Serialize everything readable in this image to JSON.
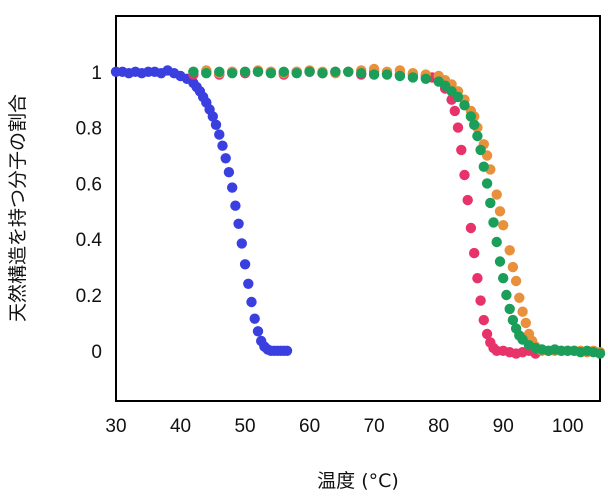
{
  "chart_data": {
    "type": "scatter",
    "title": "",
    "xlabel": "温度 (°C)",
    "ylabel": "天然構造を持つ分子の割合",
    "xlim": [
      30,
      105
    ],
    "ylim": [
      -0.18,
      1.2
    ],
    "xticks": [
      30,
      40,
      50,
      60,
      70,
      80,
      90,
      100
    ],
    "yticks": [
      0,
      0.2,
      0.4,
      0.6,
      0.8,
      1
    ],
    "ytick_labels": [
      "0",
      "0.2",
      "0.4",
      "0.6",
      "0.8",
      "1"
    ],
    "grid": false,
    "legend": "none",
    "series": [
      {
        "color": "#3a3fe0",
        "points": [
          [
            30,
            1.0
          ],
          [
            31,
            1.0
          ],
          [
            32,
            0.995
          ],
          [
            33,
            1.0
          ],
          [
            34,
            0.995
          ],
          [
            35,
            1.0
          ],
          [
            36,
            1.0
          ],
          [
            37,
            0.995
          ],
          [
            38,
            1.005
          ],
          [
            39,
            0.995
          ],
          [
            40,
            0.985
          ],
          [
            41,
            0.975
          ],
          [
            42,
            0.96
          ],
          [
            42.5,
            0.945
          ],
          [
            43,
            0.93
          ],
          [
            43.5,
            0.91
          ],
          [
            44,
            0.89
          ],
          [
            44.5,
            0.865
          ],
          [
            45,
            0.84
          ],
          [
            45.5,
            0.81
          ],
          [
            46,
            0.775
          ],
          [
            46.5,
            0.735
          ],
          [
            47,
            0.69
          ],
          [
            47.5,
            0.64
          ],
          [
            48,
            0.585
          ],
          [
            48.5,
            0.52
          ],
          [
            49,
            0.455
          ],
          [
            49.5,
            0.385
          ],
          [
            50,
            0.31
          ],
          [
            50.5,
            0.24
          ],
          [
            51,
            0.175
          ],
          [
            51.5,
            0.115
          ],
          [
            52,
            0.07
          ],
          [
            52.5,
            0.035
          ],
          [
            53,
            0.015
          ],
          [
            53.5,
            0.005
          ],
          [
            54,
            0.0
          ],
          [
            54.5,
            0.0
          ],
          [
            55,
            0.0
          ],
          [
            55.5,
            0.0
          ],
          [
            56,
            0.0
          ],
          [
            56.5,
            0.0
          ]
        ]
      },
      {
        "color": "#e8336a",
        "points": [
          [
            42,
            0.99
          ],
          [
            44,
            1.0
          ],
          [
            46,
            0.99
          ],
          [
            48,
            1.0
          ],
          [
            50,
            0.995
          ],
          [
            52,
            1.0
          ],
          [
            54,
            1.0
          ],
          [
            56,
            0.99
          ],
          [
            58,
            1.0
          ],
          [
            60,
            1.0
          ],
          [
            62,
            0.995
          ],
          [
            64,
            1.0
          ],
          [
            66,
            1.0
          ],
          [
            68,
            0.99
          ],
          [
            70,
            1.0
          ],
          [
            72,
            0.995
          ],
          [
            74,
            0.99
          ],
          [
            76,
            0.99
          ],
          [
            78,
            0.985
          ],
          [
            79,
            0.98
          ],
          [
            80,
            0.97
          ],
          [
            81,
            0.94
          ],
          [
            82,
            0.9
          ],
          [
            82.5,
            0.86
          ],
          [
            83,
            0.8
          ],
          [
            83.5,
            0.72
          ],
          [
            84,
            0.63
          ],
          [
            84.5,
            0.54
          ],
          [
            85,
            0.44
          ],
          [
            85.5,
            0.35
          ],
          [
            86,
            0.26
          ],
          [
            86.5,
            0.18
          ],
          [
            87,
            0.11
          ],
          [
            87.5,
            0.06
          ],
          [
            88,
            0.03
          ],
          [
            88.5,
            0.01
          ],
          [
            89,
            0.0
          ],
          [
            90,
            0.0
          ],
          [
            91,
            -0.005
          ],
          [
            92,
            -0.01
          ],
          [
            93,
            -0.005
          ],
          [
            94,
            0.0
          ],
          [
            95,
            -0.01
          ]
        ]
      },
      {
        "color": "#e8903c",
        "points": [
          [
            42,
            1.0
          ],
          [
            44,
            1.005
          ],
          [
            46,
            0.995
          ],
          [
            48,
            1.0
          ],
          [
            50,
            1.0
          ],
          [
            52,
            1.005
          ],
          [
            54,
            1.0
          ],
          [
            56,
            0.995
          ],
          [
            58,
            1.0
          ],
          [
            60,
            1.005
          ],
          [
            62,
            1.0
          ],
          [
            64,
            0.995
          ],
          [
            66,
            1.0
          ],
          [
            68,
            1.005
          ],
          [
            70,
            1.01
          ],
          [
            72,
            1.0
          ],
          [
            74,
            1.005
          ],
          [
            76,
            0.995
          ],
          [
            78,
            0.99
          ],
          [
            80,
            0.985
          ],
          [
            81,
            0.97
          ],
          [
            82,
            0.955
          ],
          [
            83,
            0.93
          ],
          [
            84,
            0.9
          ],
          [
            85,
            0.86
          ],
          [
            85.5,
            0.84
          ],
          [
            86,
            0.8
          ],
          [
            87,
            0.74
          ],
          [
            87.5,
            0.7
          ],
          [
            88,
            0.65
          ],
          [
            89,
            0.56
          ],
          [
            89.5,
            0.5
          ],
          [
            90,
            0.45
          ],
          [
            91,
            0.36
          ],
          [
            91.5,
            0.3
          ],
          [
            92,
            0.25
          ],
          [
            92.5,
            0.19
          ],
          [
            93,
            0.14
          ],
          [
            93.5,
            0.1
          ],
          [
            94,
            0.06
          ],
          [
            94.5,
            0.035
          ],
          [
            95,
            0.015
          ],
          [
            96,
            0.0
          ],
          [
            97,
            0.0
          ],
          [
            98,
            0.0
          ],
          [
            99,
            0.0
          ],
          [
            100,
            0.0
          ],
          [
            101,
            0.0
          ],
          [
            102,
            0.0
          ],
          [
            103,
            -0.005
          ],
          [
            104,
            0.0
          ],
          [
            105,
            -0.005
          ]
        ]
      },
      {
        "color": "#1a9e5a",
        "points": [
          [
            42,
            1.0
          ],
          [
            44,
            0.995
          ],
          [
            46,
            1.0
          ],
          [
            48,
            0.995
          ],
          [
            50,
            1.0
          ],
          [
            52,
            1.0
          ],
          [
            54,
            0.995
          ],
          [
            56,
            1.0
          ],
          [
            58,
            0.995
          ],
          [
            60,
            1.0
          ],
          [
            62,
            0.995
          ],
          [
            64,
            1.0
          ],
          [
            66,
            1.0
          ],
          [
            68,
            0.995
          ],
          [
            70,
            0.99
          ],
          [
            72,
            0.99
          ],
          [
            74,
            0.985
          ],
          [
            76,
            0.98
          ],
          [
            78,
            0.975
          ],
          [
            80,
            0.965
          ],
          [
            81,
            0.95
          ],
          [
            82,
            0.93
          ],
          [
            83,
            0.91
          ],
          [
            84,
            0.88
          ],
          [
            85,
            0.84
          ],
          [
            85.5,
            0.81
          ],
          [
            86,
            0.77
          ],
          [
            86.5,
            0.72
          ],
          [
            87,
            0.66
          ],
          [
            87.5,
            0.6
          ],
          [
            88,
            0.53
          ],
          [
            88.5,
            0.46
          ],
          [
            89,
            0.39
          ],
          [
            89.5,
            0.32
          ],
          [
            90,
            0.26
          ],
          [
            90.5,
            0.2
          ],
          [
            91,
            0.15
          ],
          [
            91.5,
            0.11
          ],
          [
            92,
            0.08
          ],
          [
            92.5,
            0.055
          ],
          [
            93,
            0.04
          ],
          [
            94,
            0.02
          ],
          [
            95,
            0.01
          ],
          [
            96,
            0.005
          ],
          [
            97,
            0.0
          ],
          [
            98,
            0.005
          ],
          [
            99,
            0.0
          ],
          [
            100,
            0.0
          ],
          [
            101,
            0.0
          ],
          [
            102,
            -0.005
          ],
          [
            103,
            0.0
          ],
          [
            104,
            -0.005
          ],
          [
            105,
            -0.01
          ]
        ]
      }
    ]
  }
}
